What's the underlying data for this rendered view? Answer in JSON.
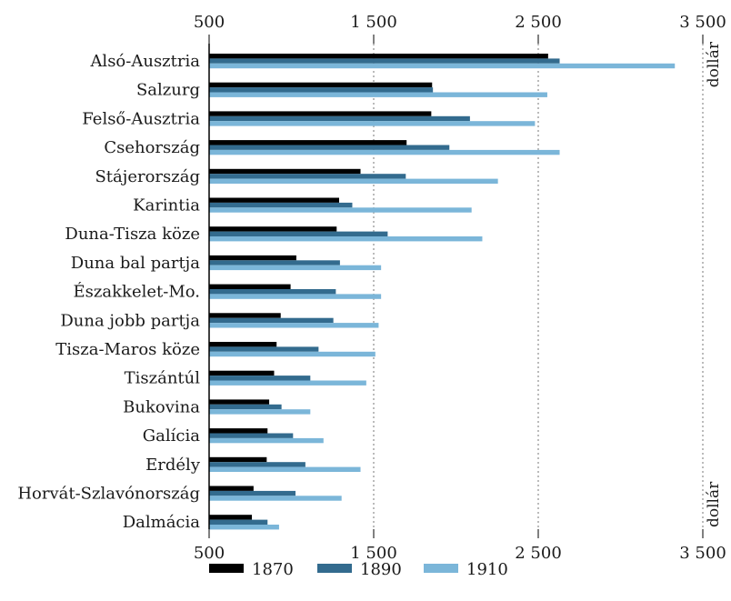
{
  "chart_data": {
    "type": "bar",
    "orientation": "horizontal",
    "unit_label": "dollár",
    "xlim": [
      500,
      3500
    ],
    "xticks": [
      500,
      1500,
      2500,
      3500
    ],
    "xtick_labels": [
      "500",
      "1 500",
      "2 500",
      "3 500"
    ],
    "grid": true,
    "legend_position": "bottom",
    "categories": [
      "Alsó-Ausztria",
      "Salzurg",
      "Felső-Ausztria",
      "Csehország",
      "Stájerország",
      "Karintia",
      "Duna-Tisza köze",
      "Duna bal partja",
      "Északkelet-Mo.",
      "Duna jobb partja",
      "Tisza-Maros köze",
      "Tiszántúl",
      "Bukovina",
      "Galícia",
      "Erdély",
      "Horvát-Szlavónország",
      "Dalmácia"
    ],
    "series": [
      {
        "name": "1870",
        "color": "#000000",
        "values": [
          2560,
          1855,
          1850,
          1700,
          1420,
          1290,
          1275,
          1030,
          995,
          935,
          910,
          895,
          865,
          855,
          850,
          770,
          760
        ]
      },
      {
        "name": "1890",
        "color": "#336b8e",
        "values": [
          2630,
          1860,
          2085,
          1960,
          1695,
          1370,
          1585,
          1295,
          1270,
          1255,
          1165,
          1115,
          940,
          1010,
          1085,
          1025,
          855
        ]
      },
      {
        "name": "1910",
        "color": "#7bb6d9",
        "values": [
          3330,
          2555,
          2480,
          2630,
          2255,
          2095,
          2160,
          1545,
          1545,
          1530,
          1510,
          1455,
          1115,
          1195,
          1420,
          1305,
          925
        ]
      }
    ]
  }
}
